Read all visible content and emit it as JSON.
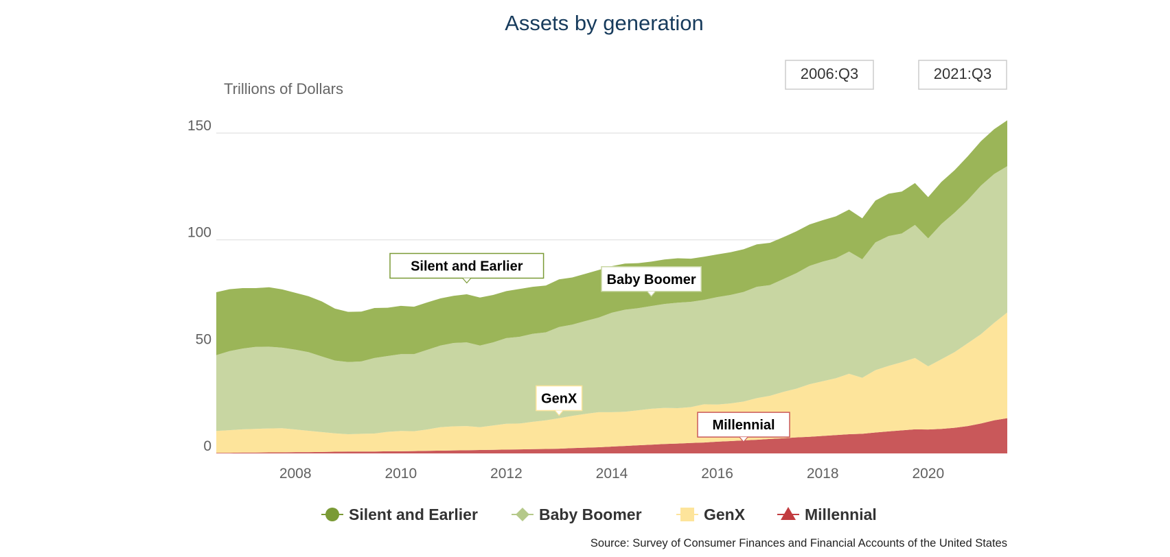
{
  "chart_data": {
    "type": "area",
    "stacked": true,
    "title": "Assets by generation",
    "ylabel": "Trillions of Dollars",
    "ylim": [
      0,
      150
    ],
    "yticks": [
      0,
      50,
      100,
      150
    ],
    "xlim": [
      2006.5,
      2021.5
    ],
    "xticks": [
      2008,
      2010,
      2012,
      2014,
      2016,
      2018,
      2020
    ],
    "grid": true,
    "legend_position": "bottom",
    "range": {
      "start": "2006:Q3",
      "end": "2021:Q3"
    },
    "source": "Source: Survey of Consumer Finances and Financial Accounts of the United States",
    "x": [
      2006.5,
      2006.75,
      2007.0,
      2007.25,
      2007.5,
      2007.75,
      2008.0,
      2008.25,
      2008.5,
      2008.75,
      2009.0,
      2009.25,
      2009.5,
      2009.75,
      2010.0,
      2010.25,
      2010.5,
      2010.75,
      2011.0,
      2011.25,
      2011.5,
      2011.75,
      2012.0,
      2012.25,
      2012.5,
      2012.75,
      2013.0,
      2013.25,
      2013.5,
      2013.75,
      2014.0,
      2014.25,
      2014.5,
      2014.75,
      2015.0,
      2015.25,
      2015.5,
      2015.75,
      2016.0,
      2016.25,
      2016.5,
      2016.75,
      2017.0,
      2017.25,
      2017.5,
      2017.75,
      2018.0,
      2018.25,
      2018.5,
      2018.75,
      2019.0,
      2019.25,
      2019.5,
      2019.75,
      2020.0,
      2020.25,
      2020.5,
      2020.75,
      2021.0,
      2021.25,
      2021.5
    ],
    "series": [
      {
        "name": "Millennial",
        "color": "#c9585a",
        "values": [
          0.3,
          0.3,
          0.4,
          0.4,
          0.5,
          0.5,
          0.6,
          0.6,
          0.7,
          0.8,
          0.9,
          0.9,
          0.9,
          1.0,
          1.0,
          1.1,
          1.2,
          1.3,
          1.4,
          1.5,
          1.6,
          1.7,
          1.8,
          1.9,
          2.0,
          2.1,
          2.2,
          2.5,
          2.7,
          2.9,
          3.2,
          3.5,
          3.8,
          4.1,
          4.4,
          4.6,
          4.9,
          5.1,
          5.5,
          5.8,
          6.1,
          6.4,
          6.8,
          7.1,
          7.5,
          7.8,
          8.2,
          8.6,
          9.0,
          9.2,
          9.8,
          10.3,
          10.8,
          11.3,
          11.2,
          11.5,
          12.0,
          12.8,
          14.0,
          15.5,
          16.5
        ]
      },
      {
        "name": "GenX",
        "color": "#fde49b",
        "values": [
          10.2,
          10.6,
          10.9,
          11.1,
          11.2,
          11.3,
          10.6,
          10.0,
          9.3,
          8.6,
          8.1,
          8.3,
          8.4,
          9.1,
          9.5,
          9.3,
          10.0,
          11.0,
          11.3,
          11.3,
          10.7,
          11.4,
          12.1,
          12.1,
          12.8,
          13.4,
          14.3,
          15.1,
          15.8,
          16.4,
          16.1,
          16.0,
          16.4,
          16.8,
          16.9,
          16.6,
          16.8,
          17.9,
          17.4,
          17.6,
          18.2,
          19.5,
          20.2,
          21.7,
          22.8,
          24.6,
          25.6,
          26.6,
          28.3,
          26.2,
          29.2,
          30.7,
          31.9,
          33.4,
          29.6,
          32.6,
          35.4,
          38.8,
          41.8,
          45.6,
          49.5
        ]
      },
      {
        "name": "Baby Boomer",
        "color": "#c8d6a2",
        "values": [
          35.5,
          37.0,
          37.8,
          38.4,
          38.3,
          37.7,
          37.4,
          36.8,
          35.4,
          34.1,
          33.8,
          33.9,
          35.4,
          35.5,
          36.0,
          36.1,
          37.3,
          38.2,
          39.0,
          39.2,
          38.2,
          38.9,
          40.1,
          40.6,
          41.2,
          41.2,
          42.7,
          42.7,
          43.5,
          44.3,
          46.6,
          47.8,
          47.8,
          48.1,
          48.7,
          49.4,
          49.3,
          48.9,
          50.3,
          50.8,
          51.3,
          52.1,
          51.8,
          52.8,
          54.1,
          55.4,
          56.0,
          56.2,
          57.2,
          55.5,
          59.8,
          60.8,
          60.3,
          62.3,
          59.9,
          63.3,
          65.3,
          67.0,
          69.6,
          69.7,
          68.5
        ]
      },
      {
        "name": "Silent and Earlier",
        "color": "#9bb558",
        "values": [
          29.5,
          29.0,
          28.3,
          27.5,
          27.8,
          27.3,
          26.6,
          26.2,
          25.8,
          24.3,
          23.5,
          23.3,
          23.4,
          22.6,
          22.6,
          22.2,
          22.2,
          22.1,
          22.1,
          22.5,
          22.5,
          22.2,
          22.0,
          22.4,
          22.0,
          21.9,
          22.3,
          22.1,
          22.1,
          22.3,
          21.8,
          21.6,
          21.1,
          20.8,
          20.8,
          20.8,
          20.2,
          20.2,
          20.0,
          20.0,
          20.0,
          19.9,
          19.8,
          19.6,
          19.6,
          19.4,
          19.4,
          19.6,
          19.7,
          19.2,
          19.6,
          19.8,
          19.6,
          19.6,
          19.3,
          19.7,
          19.9,
          20.5,
          20.8,
          21.0,
          21.5
        ]
      }
    ],
    "annotations": [
      {
        "text": "Silent and Earlier",
        "x": 2011.25,
        "y": 79.5,
        "border": "#7a9a35"
      },
      {
        "text": "Baby Boomer",
        "x": 2014.75,
        "y": 73.3,
        "border": "#c8d6a2"
      },
      {
        "text": "GenX",
        "x": 2013.0,
        "y": 17.5,
        "border": "#fde49b"
      },
      {
        "text": "Millennial",
        "x": 2016.5,
        "y": 5.1,
        "border": "#c9585a"
      }
    ],
    "legend": [
      {
        "name": "Silent and Earlier",
        "color": "#7a9a35",
        "marker": "circle"
      },
      {
        "name": "Baby Boomer",
        "color": "#b5c98a",
        "marker": "diamond"
      },
      {
        "name": "GenX",
        "color": "#fde49b",
        "marker": "square"
      },
      {
        "name": "Millennial",
        "color": "#c23b3f",
        "marker": "triangle"
      }
    ]
  }
}
